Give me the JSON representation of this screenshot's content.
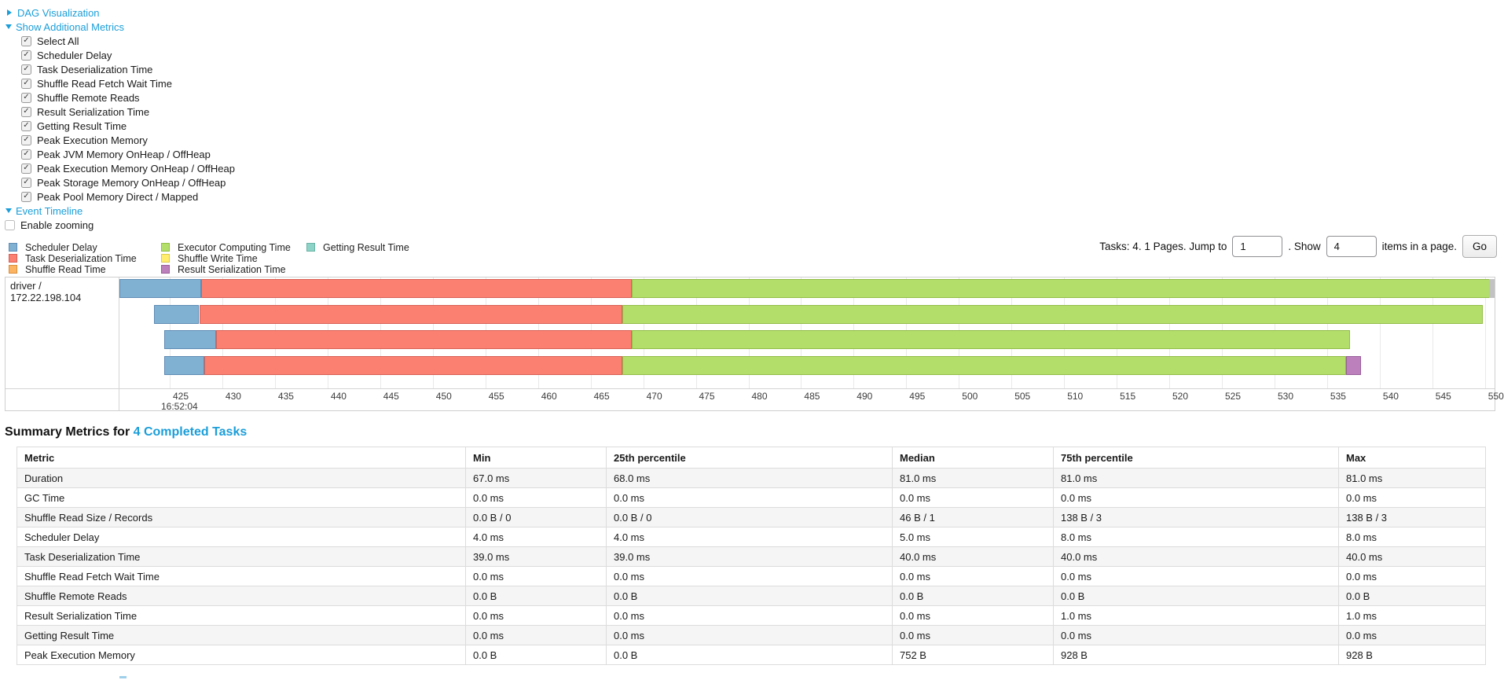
{
  "icons": {
    "check": "✓"
  },
  "palette": {
    "scheduler_delay": {
      "fill": "#80B1D3",
      "border": "#5e8cb4",
      "label": "Scheduler Delay"
    },
    "task_deserialization": {
      "fill": "#FB8072",
      "border": "#d95f54",
      "label": "Task Deserialization Time"
    },
    "shuffle_read": {
      "fill": "#FDB462",
      "border": "#d98f3c",
      "label": "Shuffle Read Time"
    },
    "executor_computing": {
      "fill": "#B3DE69",
      "border": "#91bd47",
      "label": "Executor Computing Time"
    },
    "shuffle_write": {
      "fill": "#FFED6F",
      "border": "#dcc94e",
      "label": "Shuffle Write Time"
    },
    "result_serialization": {
      "fill": "#BC80BD",
      "border": "#995f9a",
      "label": "Result Serialization Time"
    },
    "getting_result": {
      "fill": "#8DD3C7",
      "border": "#6ab3a5",
      "label": "Getting Result Time"
    }
  },
  "controls": {
    "dag_visualization": "DAG Visualization",
    "show_additional_metrics": "Show Additional Metrics",
    "metric_checkboxes": [
      "Select All",
      "Scheduler Delay",
      "Task Deserialization Time",
      "Shuffle Read Fetch Wait Time",
      "Shuffle Remote Reads",
      "Result Serialization Time",
      "Getting Result Time",
      "Peak Execution Memory",
      "Peak JVM Memory OnHeap / OffHeap",
      "Peak Execution Memory OnHeap / OffHeap",
      "Peak Storage Memory OnHeap / OffHeap",
      "Peak Pool Memory Direct / Mapped"
    ],
    "event_timeline": "Event Timeline",
    "enable_zooming": "Enable zooming"
  },
  "legend": {
    "columns": [
      [
        "scheduler_delay",
        "task_deserialization",
        "shuffle_read"
      ],
      [
        "executor_computing",
        "shuffle_write",
        "result_serialization"
      ],
      [
        "getting_result"
      ]
    ]
  },
  "pagination": {
    "tasks_info": "Tasks: 4. 1 Pages. Jump to",
    "jump_value": "1",
    "show_label": ". Show",
    "page_size_value": "4",
    "items_label": "items in a page.",
    "go_label": "Go"
  },
  "timeline": {
    "executor_label": "driver / 172.22.198.104",
    "time_label": "16:52:04",
    "axis": {
      "tick_start": 425,
      "tick_end": 550,
      "tick_step": 5,
      "unit": "ms"
    },
    "tasks": [
      {
        "segments": [
          {
            "type": "scheduler_delay",
            "start": 420.2,
            "end": 428.0
          },
          {
            "type": "task_deserialization",
            "start": 428.0,
            "end": 468.9
          },
          {
            "type": "executor_computing",
            "start": 468.9,
            "end": 550.6
          }
        ]
      },
      {
        "segments": [
          {
            "type": "scheduler_delay",
            "start": 423.5,
            "end": 427.8
          },
          {
            "type": "task_deserialization",
            "start": 427.8,
            "end": 468.0
          },
          {
            "type": "executor_computing",
            "start": 468.0,
            "end": 549.8
          }
        ]
      },
      {
        "segments": [
          {
            "type": "scheduler_delay",
            "start": 424.5,
            "end": 429.4
          },
          {
            "type": "task_deserialization",
            "start": 429.4,
            "end": 468.9
          },
          {
            "type": "executor_computing",
            "start": 468.9,
            "end": 537.2
          }
        ]
      },
      {
        "segments": [
          {
            "type": "scheduler_delay",
            "start": 424.5,
            "end": 428.3
          },
          {
            "type": "task_deserialization",
            "start": 428.3,
            "end": 468.0
          },
          {
            "type": "executor_computing",
            "start": 468.0,
            "end": 536.8
          },
          {
            "type": "result_serialization",
            "start": 536.8,
            "end": 538.2
          }
        ]
      }
    ]
  },
  "summary": {
    "heading_prefix": "Summary Metrics for ",
    "heading_link": "4 Completed Tasks",
    "table": {
      "headers": [
        "Metric",
        "Min",
        "25th percentile",
        "Median",
        "75th percentile",
        "Max"
      ],
      "rows": [
        {
          "metric": "Duration",
          "values": [
            "67.0 ms",
            "68.0 ms",
            "81.0 ms",
            "81.0 ms",
            "81.0 ms"
          ]
        },
        {
          "metric": "GC Time",
          "values": [
            "0.0 ms",
            "0.0 ms",
            "0.0 ms",
            "0.0 ms",
            "0.0 ms"
          ]
        },
        {
          "metric": "Shuffle Read Size / Records",
          "values": [
            "0.0 B / 0",
            "0.0 B / 0",
            "46 B / 1",
            "138 B / 3",
            "138 B / 3"
          ]
        },
        {
          "metric": "Scheduler Delay",
          "values": [
            "4.0 ms",
            "4.0 ms",
            "5.0 ms",
            "8.0 ms",
            "8.0 ms"
          ]
        },
        {
          "metric": "Task Deserialization Time",
          "values": [
            "39.0 ms",
            "39.0 ms",
            "40.0 ms",
            "40.0 ms",
            "40.0 ms"
          ]
        },
        {
          "metric": "Shuffle Read Fetch Wait Time",
          "values": [
            "0.0 ms",
            "0.0 ms",
            "0.0 ms",
            "0.0 ms",
            "0.0 ms"
          ]
        },
        {
          "metric": "Shuffle Remote Reads",
          "values": [
            "0.0 B",
            "0.0 B",
            "0.0 B",
            "0.0 B",
            "0.0 B"
          ]
        },
        {
          "metric": "Result Serialization Time",
          "values": [
            "0.0 ms",
            "0.0 ms",
            "0.0 ms",
            "1.0 ms",
            "1.0 ms"
          ]
        },
        {
          "metric": "Getting Result Time",
          "values": [
            "0.0 ms",
            "0.0 ms",
            "0.0 ms",
            "0.0 ms",
            "0.0 ms"
          ]
        },
        {
          "metric": "Peak Execution Memory",
          "values": [
            "0.0 B",
            "0.0 B",
            "752 B",
            "928 B",
            "928 B"
          ]
        }
      ]
    }
  }
}
